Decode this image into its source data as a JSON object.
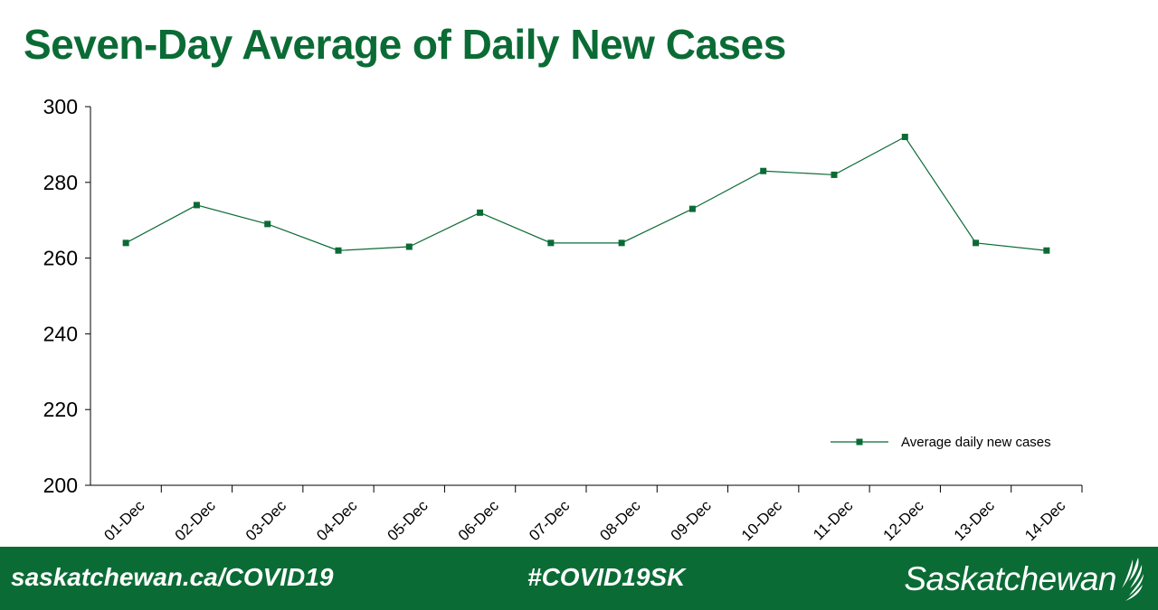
{
  "chart_data": {
    "type": "line",
    "title": "Seven-Day Average of Daily New Cases",
    "categories": [
      "01-Dec",
      "02-Dec",
      "03-Dec",
      "04-Dec",
      "05-Dec",
      "06-Dec",
      "07-Dec",
      "08-Dec",
      "09-Dec",
      "10-Dec",
      "11-Dec",
      "12-Dec",
      "13-Dec",
      "14-Dec"
    ],
    "series": [
      {
        "name": "Average daily new cases",
        "values": [
          264,
          274,
          269,
          262,
          263,
          272,
          264,
          264,
          273,
          283,
          282,
          292,
          264,
          262
        ]
      }
    ],
    "ylim": [
      200,
      300
    ],
    "yticks": [
      200,
      220,
      240,
      260,
      280,
      300
    ],
    "xlabel": "",
    "ylabel": "",
    "legend_position": "bottom-right",
    "grid": false
  },
  "colors": {
    "brand_green": "#0b6b35",
    "line": "#0b6b35"
  },
  "footer": {
    "url": "saskatchewan.ca/COVID19",
    "hashtag": "#COVID19SK",
    "logo_text": "Saskatchewan",
    "logo_icon": "wheat-icon"
  }
}
